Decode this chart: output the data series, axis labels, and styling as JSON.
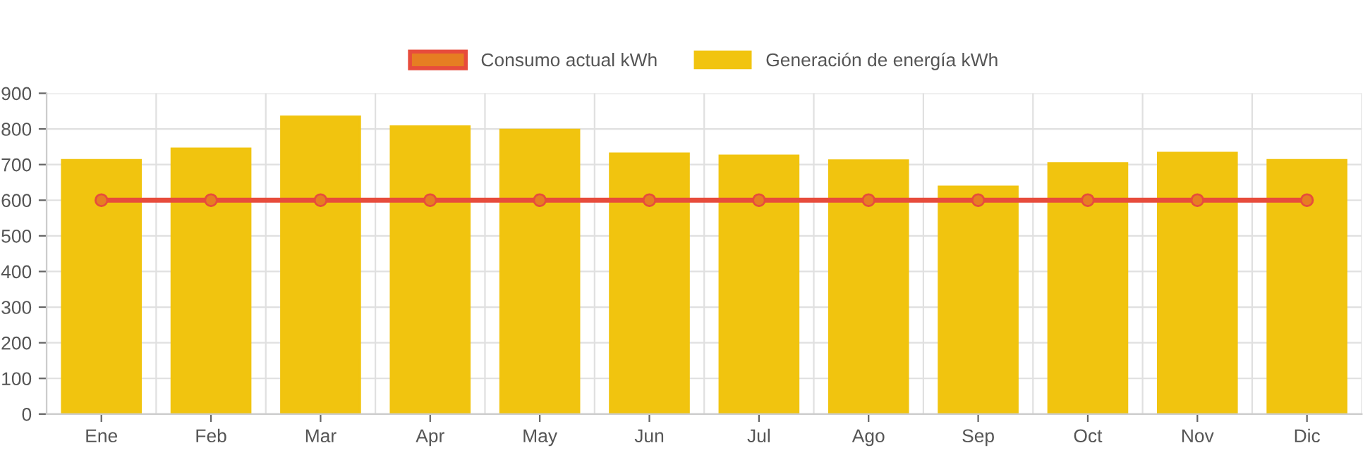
{
  "chart_data": {
    "type": "bar",
    "categories": [
      "Ene",
      "Feb",
      "Mar",
      "Apr",
      "May",
      "Jun",
      "Jul",
      "Ago",
      "Sep",
      "Oct",
      "Nov",
      "Dic"
    ],
    "series": [
      {
        "name": "Consumo actual kWh",
        "type": "line",
        "color": "#e74c3c",
        "values": [
          600,
          600,
          600,
          600,
          600,
          600,
          600,
          600,
          600,
          600,
          600,
          600
        ]
      },
      {
        "name": "Generación de energía kWh",
        "color": "#f1c40f",
        "values": [
          713,
          745,
          835,
          807,
          798,
          731,
          725,
          712,
          638,
          704,
          733,
          713
        ]
      }
    ],
    "ylim": [
      0,
      900
    ],
    "yticks": [
      0,
      100,
      200,
      300,
      400,
      500,
      600,
      700,
      800,
      900
    ],
    "grid": true,
    "legend": "top",
    "marker": "circle",
    "line_style": "solid"
  }
}
